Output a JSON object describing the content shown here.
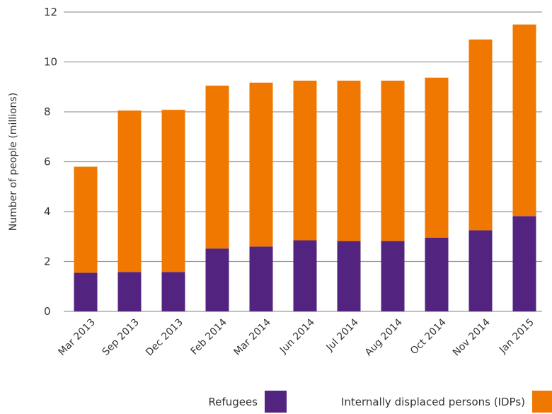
{
  "chart_data": {
    "type": "bar",
    "stacked": true,
    "categories": [
      "Mar 2013",
      "Sep 2013",
      "Dec 2013",
      "Feb 2014",
      "Mar 2014",
      "Jun 2014",
      "Jul 2014",
      "Aug 2014",
      "Oct 2014",
      "Nov 2014",
      "Jan 2015"
    ],
    "series": [
      {
        "name": "Refugees",
        "color": "#52247f",
        "values": [
          1.55,
          1.58,
          1.58,
          2.52,
          2.6,
          2.85,
          2.82,
          2.82,
          2.95,
          3.25,
          3.82
        ]
      },
      {
        "name": "Internally displaced persons (IDPs)",
        "color": "#f07800",
        "values": [
          4.25,
          6.47,
          6.5,
          6.53,
          6.57,
          6.4,
          6.43,
          6.43,
          6.42,
          7.65,
          7.68
        ]
      }
    ],
    "title": "",
    "xlabel": "",
    "ylabel": "Number of people (millions)",
    "ylim": [
      0,
      12
    ],
    "yticks": [
      0,
      2,
      4,
      6,
      8,
      10,
      12
    ],
    "grid": "horizontal",
    "legend_position": "bottom-right"
  }
}
